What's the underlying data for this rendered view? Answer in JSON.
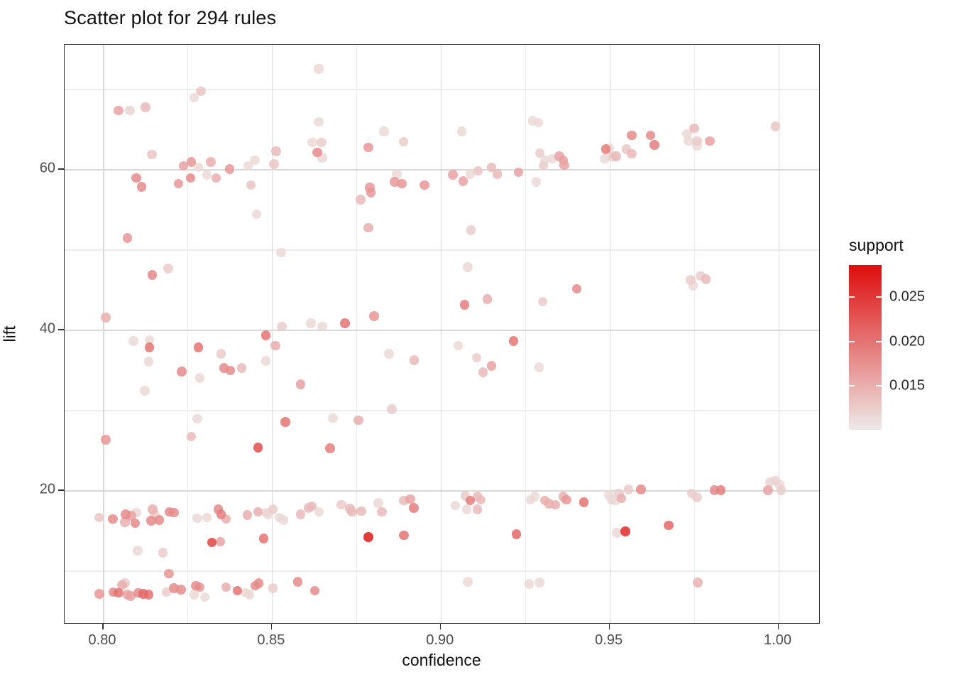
{
  "title": "Scatter plot for 294 rules",
  "chart_data": {
    "type": "scatter",
    "title": "Scatter plot for 294 rules",
    "xlabel": "confidence",
    "ylabel": "lift",
    "xlim": [
      0.789,
      1.012
    ],
    "ylim": [
      3.2,
      75.5
    ],
    "grid": true,
    "x_major_ticks": {
      "values": [
        0.8,
        0.85,
        0.9,
        0.95,
        1.0
      ],
      "labels": [
        "0.80",
        "0.85",
        "0.90",
        "0.95",
        "1.00"
      ]
    },
    "x_minor_ticks": [
      0.825,
      0.875,
      0.925,
      0.975
    ],
    "y_major_ticks": {
      "values": [
        20,
        40,
        60
      ],
      "labels": [
        "20",
        "40",
        "60"
      ]
    },
    "y_minor_ticks": [
      10,
      30,
      50,
      70
    ],
    "legend": {
      "title": "support",
      "position": "right",
      "tick_values": [
        0.025,
        0.02,
        0.015
      ],
      "tick_labels": [
        "0.025",
        "0.020",
        "0.015"
      ],
      "range": [
        0.01,
        0.0285
      ],
      "low_color": "#ECEAE8",
      "high_color": "#DE0D0D"
    },
    "points": [
      [
        0.8046,
        67.3,
        0.016
      ],
      [
        0.808,
        67.3,
        0.012
      ],
      [
        0.8126,
        67.7,
        0.014
      ],
      [
        0.827,
        68.9,
        0.0115
      ],
      [
        0.829,
        69.7,
        0.013
      ],
      [
        0.8145,
        61.8,
        0.013
      ],
      [
        0.8513,
        62.2,
        0.014
      ],
      [
        0.8239,
        60.4,
        0.016
      ],
      [
        0.8262,
        60.9,
        0.017
      ],
      [
        0.8283,
        60.2,
        0.0115
      ],
      [
        0.8319,
        60.9,
        0.015
      ],
      [
        0.8375,
        60.0,
        0.017
      ],
      [
        0.843,
        60.4,
        0.0115
      ],
      [
        0.845,
        61.1,
        0.0115
      ],
      [
        0.8507,
        60.6,
        0.013
      ],
      [
        0.8099,
        58.9,
        0.018
      ],
      [
        0.8115,
        57.8,
        0.018
      ],
      [
        0.8224,
        58.2,
        0.017
      ],
      [
        0.826,
        58.9,
        0.018
      ],
      [
        0.8308,
        59.3,
        0.0115
      ],
      [
        0.8335,
        58.9,
        0.015
      ],
      [
        0.8438,
        58.0,
        0.013
      ],
      [
        0.8455,
        54.4,
        0.0115
      ],
      [
        0.8073,
        51.4,
        0.017
      ],
      [
        0.862,
        63.3,
        0.0115
      ],
      [
        0.8635,
        62.1,
        0.018
      ],
      [
        0.865,
        61.4,
        0.0115
      ],
      [
        0.8647,
        63.3,
        0.0125
      ],
      [
        0.8639,
        72.5,
        0.0115
      ],
      [
        0.8639,
        65.9,
        0.0115
      ],
      [
        0.8786,
        62.7,
        0.017
      ],
      [
        0.8832,
        64.7,
        0.0115
      ],
      [
        0.889,
        63.4,
        0.0125
      ],
      [
        0.9063,
        64.7,
        0.0115
      ],
      [
        0.9273,
        66.0,
        0.0115
      ],
      [
        0.929,
        65.8,
        0.0115
      ],
      [
        0.9294,
        62.0,
        0.0125
      ],
      [
        0.9308,
        61.1,
        0.0115
      ],
      [
        0.9304,
        60.4,
        0.0125
      ],
      [
        0.9331,
        61.3,
        0.0115
      ],
      [
        0.9352,
        61.6,
        0.016
      ],
      [
        0.9363,
        61.1,
        0.016
      ],
      [
        0.9366,
        60.5,
        0.016
      ],
      [
        0.887,
        59.4,
        0.0115
      ],
      [
        0.8864,
        58.4,
        0.017
      ],
      [
        0.8885,
        58.2,
        0.017
      ],
      [
        0.879,
        57.7,
        0.017
      ],
      [
        0.8794,
        57.1,
        0.017
      ],
      [
        0.8763,
        56.2,
        0.014
      ],
      [
        0.8952,
        58.0,
        0.017
      ],
      [
        0.9036,
        59.3,
        0.016
      ],
      [
        0.9067,
        58.5,
        0.016
      ],
      [
        0.9088,
        59.4,
        0.0115
      ],
      [
        0.9111,
        59.8,
        0.013
      ],
      [
        0.9151,
        60.2,
        0.014
      ],
      [
        0.9168,
        59.4,
        0.014
      ],
      [
        0.9231,
        59.6,
        0.016
      ],
      [
        0.9283,
        58.4,
        0.0115
      ],
      [
        0.8786,
        52.7,
        0.015
      ],
      [
        0.909,
        52.4,
        0.0125
      ],
      [
        0.9489,
        62.5,
        0.019
      ],
      [
        0.9486,
        61.3,
        0.0115
      ],
      [
        0.95,
        62.6,
        0.0115
      ],
      [
        0.951,
        61.6,
        0.0125
      ],
      [
        0.952,
        61.6,
        0.014
      ],
      [
        0.955,
        62.5,
        0.013
      ],
      [
        0.9566,
        64.2,
        0.018
      ],
      [
        0.9566,
        61.9,
        0.014
      ],
      [
        0.9622,
        64.2,
        0.018
      ],
      [
        0.9633,
        63.0,
        0.019
      ],
      [
        0.973,
        64.4,
        0.0115
      ],
      [
        0.9751,
        65.1,
        0.014
      ],
      [
        0.9734,
        63.5,
        0.0115
      ],
      [
        0.9759,
        63.5,
        0.0125
      ],
      [
        0.9759,
        62.9,
        0.0115
      ],
      [
        0.9797,
        63.5,
        0.016
      ],
      [
        0.9992,
        65.3,
        0.013
      ],
      [
        0.8528,
        49.6,
        0.0115
      ],
      [
        0.8146,
        46.8,
        0.018
      ],
      [
        0.8193,
        47.6,
        0.0125
      ],
      [
        0.8008,
        41.5,
        0.015
      ],
      [
        0.853,
        40.4,
        0.0125
      ],
      [
        0.8616,
        40.8,
        0.0115
      ],
      [
        0.8482,
        39.3,
        0.02
      ],
      [
        0.809,
        38.6,
        0.0115
      ],
      [
        0.8138,
        38.7,
        0.0115
      ],
      [
        0.8138,
        37.8,
        0.02
      ],
      [
        0.8283,
        37.8,
        0.02
      ],
      [
        0.835,
        37.0,
        0.0125
      ],
      [
        0.8511,
        38.0,
        0.015
      ],
      [
        0.8136,
        36.0,
        0.0115
      ],
      [
        0.8358,
        35.2,
        0.018
      ],
      [
        0.8377,
        34.9,
        0.018
      ],
      [
        0.8411,
        35.2,
        0.014
      ],
      [
        0.8233,
        34.8,
        0.018
      ],
      [
        0.8287,
        34.0,
        0.0115
      ],
      [
        0.8482,
        36.1,
        0.0115
      ],
      [
        0.8585,
        33.2,
        0.016
      ],
      [
        0.8124,
        32.4,
        0.0115
      ],
      [
        0.828,
        28.9,
        0.0115
      ],
      [
        0.854,
        28.5,
        0.02
      ],
      [
        0.908,
        47.8,
        0.0115
      ],
      [
        0.9071,
        43.1,
        0.019
      ],
      [
        0.9138,
        43.8,
        0.015
      ],
      [
        0.9302,
        43.5,
        0.0125
      ],
      [
        0.8803,
        41.7,
        0.017
      ],
      [
        0.8717,
        40.8,
        0.02
      ],
      [
        0.865,
        40.4,
        0.0115
      ],
      [
        0.9052,
        38.0,
        0.0115
      ],
      [
        0.9216,
        38.6,
        0.02
      ],
      [
        0.9107,
        36.5,
        0.0125
      ],
      [
        0.9151,
        35.5,
        0.016
      ],
      [
        0.9126,
        34.7,
        0.014
      ],
      [
        0.9292,
        35.3,
        0.0115
      ],
      [
        0.8847,
        37.0,
        0.0115
      ],
      [
        0.8922,
        36.2,
        0.014
      ],
      [
        0.8855,
        30.1,
        0.0125
      ],
      [
        0.8681,
        29.0,
        0.0115
      ],
      [
        0.8757,
        28.7,
        0.015
      ],
      [
        0.9403,
        45.1,
        0.018
      ],
      [
        0.974,
        46.2,
        0.0125
      ],
      [
        0.9748,
        45.5,
        0.0115
      ],
      [
        0.977,
        46.7,
        0.0125
      ],
      [
        0.9786,
        46.3,
        0.014
      ],
      [
        0.8008,
        26.3,
        0.017
      ],
      [
        0.8262,
        26.7,
        0.014
      ],
      [
        0.8459,
        25.3,
        0.023
      ],
      [
        0.7988,
        16.6,
        0.013
      ],
      [
        0.8029,
        16.4,
        0.018
      ],
      [
        0.8067,
        17.0,
        0.018
      ],
      [
        0.8084,
        16.8,
        0.016
      ],
      [
        0.8099,
        17.2,
        0.0115
      ],
      [
        0.8065,
        16.0,
        0.015
      ],
      [
        0.8096,
        15.9,
        0.018
      ],
      [
        0.8147,
        17.6,
        0.015
      ],
      [
        0.8153,
        16.9,
        0.0125
      ],
      [
        0.8143,
        16.2,
        0.018
      ],
      [
        0.8167,
        16.3,
        0.018
      ],
      [
        0.8197,
        17.3,
        0.018
      ],
      [
        0.821,
        17.2,
        0.018
      ],
      [
        0.828,
        16.5,
        0.0115
      ],
      [
        0.8308,
        16.6,
        0.0115
      ],
      [
        0.8342,
        17.6,
        0.018
      ],
      [
        0.835,
        17.0,
        0.019
      ],
      [
        0.8365,
        16.4,
        0.015
      ],
      [
        0.8428,
        16.9,
        0.015
      ],
      [
        0.8459,
        17.3,
        0.015
      ],
      [
        0.8482,
        17.2,
        0.0115
      ],
      [
        0.849,
        17.0,
        0.0115
      ],
      [
        0.8503,
        17.6,
        0.0125
      ],
      [
        0.8522,
        16.6,
        0.0115
      ],
      [
        0.8535,
        16.3,
        0.0115
      ],
      [
        0.8585,
        17.0,
        0.014
      ],
      [
        0.8608,
        17.8,
        0.014
      ],
      [
        0.8619,
        18.0,
        0.014
      ],
      [
        0.8103,
        12.5,
        0.0115
      ],
      [
        0.8178,
        12.2,
        0.0125
      ],
      [
        0.8323,
        13.5,
        0.024
      ],
      [
        0.8348,
        13.6,
        0.016
      ],
      [
        0.8476,
        14.0,
        0.02
      ],
      [
        0.8195,
        9.6,
        0.017
      ],
      [
        0.799,
        7.1,
        0.017
      ],
      [
        0.8031,
        7.3,
        0.018
      ],
      [
        0.8046,
        7.2,
        0.02
      ],
      [
        0.8057,
        8.2,
        0.015
      ],
      [
        0.8065,
        8.4,
        0.0125
      ],
      [
        0.8073,
        7.0,
        0.016
      ],
      [
        0.8082,
        6.8,
        0.016
      ],
      [
        0.8105,
        7.2,
        0.018
      ],
      [
        0.812,
        7.1,
        0.021
      ],
      [
        0.8136,
        7.0,
        0.02
      ],
      [
        0.8188,
        7.3,
        0.0125
      ],
      [
        0.821,
        7.8,
        0.018
      ],
      [
        0.8231,
        7.6,
        0.018
      ],
      [
        0.8275,
        8.1,
        0.018
      ],
      [
        0.8287,
        7.9,
        0.017
      ],
      [
        0.827,
        7.0,
        0.0115
      ],
      [
        0.8302,
        6.7,
        0.0115
      ],
      [
        0.8365,
        7.9,
        0.015
      ],
      [
        0.8398,
        7.5,
        0.02
      ],
      [
        0.8424,
        7.2,
        0.0115
      ],
      [
        0.8434,
        7.0,
        0.0115
      ],
      [
        0.8451,
        8.1,
        0.018
      ],
      [
        0.8461,
        8.4,
        0.018
      ],
      [
        0.8503,
        7.8,
        0.0125
      ],
      [
        0.8577,
        8.6,
        0.018
      ],
      [
        0.8627,
        7.5,
        0.018
      ],
      [
        0.8673,
        25.2,
        0.019
      ],
      [
        0.864,
        17.3,
        0.0115
      ],
      [
        0.8706,
        18.2,
        0.0125
      ],
      [
        0.8731,
        17.7,
        0.014
      ],
      [
        0.8738,
        17.3,
        0.014
      ],
      [
        0.8765,
        17.4,
        0.014
      ],
      [
        0.8816,
        18.4,
        0.0115
      ],
      [
        0.8826,
        17.3,
        0.014
      ],
      [
        0.8891,
        18.7,
        0.014
      ],
      [
        0.891,
        18.9,
        0.016
      ],
      [
        0.8921,
        17.8,
        0.019
      ],
      [
        0.8786,
        14.15,
        0.0275
      ],
      [
        0.8891,
        14.4,
        0.02
      ],
      [
        0.9044,
        18.1,
        0.0115
      ],
      [
        0.9073,
        19.3,
        0.0125
      ],
      [
        0.9088,
        18.7,
        0.019
      ],
      [
        0.9109,
        19.2,
        0.014
      ],
      [
        0.9119,
        18.8,
        0.014
      ],
      [
        0.9077,
        17.6,
        0.0115
      ],
      [
        0.9109,
        17.6,
        0.014
      ],
      [
        0.9224,
        14.5,
        0.021
      ],
      [
        0.908,
        8.6,
        0.0115
      ],
      [
        0.9262,
        8.3,
        0.0115
      ],
      [
        0.9293,
        8.5,
        0.0115
      ],
      [
        0.9266,
        18.8,
        0.0115
      ],
      [
        0.9279,
        19.2,
        0.0115
      ],
      [
        0.9308,
        18.7,
        0.015
      ],
      [
        0.9321,
        18.3,
        0.015
      ],
      [
        0.934,
        18.2,
        0.015
      ],
      [
        0.9363,
        19.2,
        0.015
      ],
      [
        0.9373,
        18.8,
        0.017
      ],
      [
        0.9424,
        18.5,
        0.02
      ],
      [
        0.9499,
        19.4,
        0.0115
      ],
      [
        0.9507,
        18.8,
        0.0115
      ],
      [
        0.9518,
        18.7,
        0.0115
      ],
      [
        0.9528,
        19.6,
        0.0125
      ],
      [
        0.9535,
        19.0,
        0.015
      ],
      [
        0.9556,
        20.1,
        0.0125
      ],
      [
        0.9593,
        20.1,
        0.018
      ],
      [
        0.9744,
        19.6,
        0.0125
      ],
      [
        0.9759,
        19.1,
        0.0125
      ],
      [
        0.9811,
        20.0,
        0.018
      ],
      [
        0.983,
        20.0,
        0.019
      ],
      [
        0.997,
        20.0,
        0.016
      ],
      [
        0.9975,
        21.0,
        0.0115
      ],
      [
        0.9991,
        21.2,
        0.012
      ],
      [
        1.0003,
        20.7,
        0.0115
      ],
      [
        1.0008,
        20.0,
        0.0125
      ],
      [
        0.9522,
        14.7,
        0.0115
      ],
      [
        0.9547,
        14.85,
        0.026
      ],
      [
        0.9675,
        15.6,
        0.021
      ],
      [
        0.9761,
        8.5,
        0.0145
      ]
    ]
  }
}
